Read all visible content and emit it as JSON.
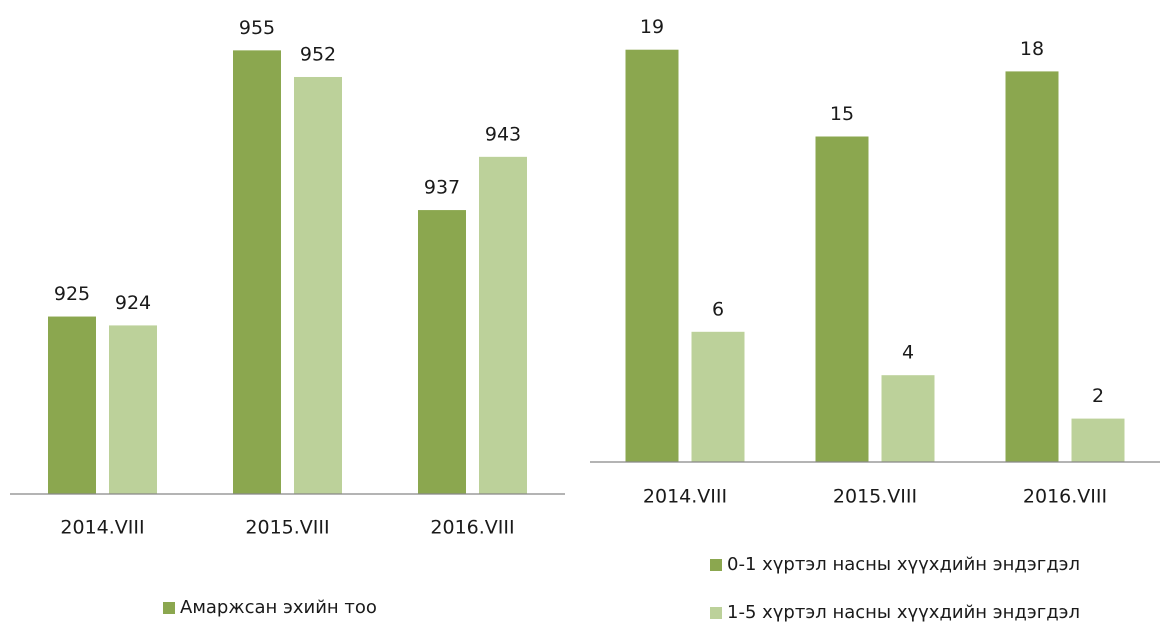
{
  "chart_data": [
    {
      "type": "bar",
      "categories": [
        "2014.VIII",
        "2015.VIII",
        "2016.VIII"
      ],
      "series": [
        {
          "name": "Амаржсан эхийн тоо",
          "color": "#8ba74f",
          "values": [
            925,
            955,
            937
          ]
        },
        {
          "color": "#bcd19a",
          "values": [
            924,
            952,
            943
          ]
        }
      ],
      "ylim": [
        905,
        960
      ]
    },
    {
      "type": "bar",
      "categories": [
        "2014.VIII",
        "2015.VIII",
        "2016.VIII"
      ],
      "series": [
        {
          "name": "0-1 хүртэл насны хүүхдийн эндэгдэл",
          "color": "#8ba74f",
          "values": [
            19,
            15,
            18
          ]
        },
        {
          "name": "1-5 хүртэл насны хүүхдийн эндэгдэл",
          "color": "#bcd19a",
          "values": [
            6,
            4,
            2
          ]
        }
      ],
      "ylim": [
        0,
        20
      ]
    }
  ]
}
